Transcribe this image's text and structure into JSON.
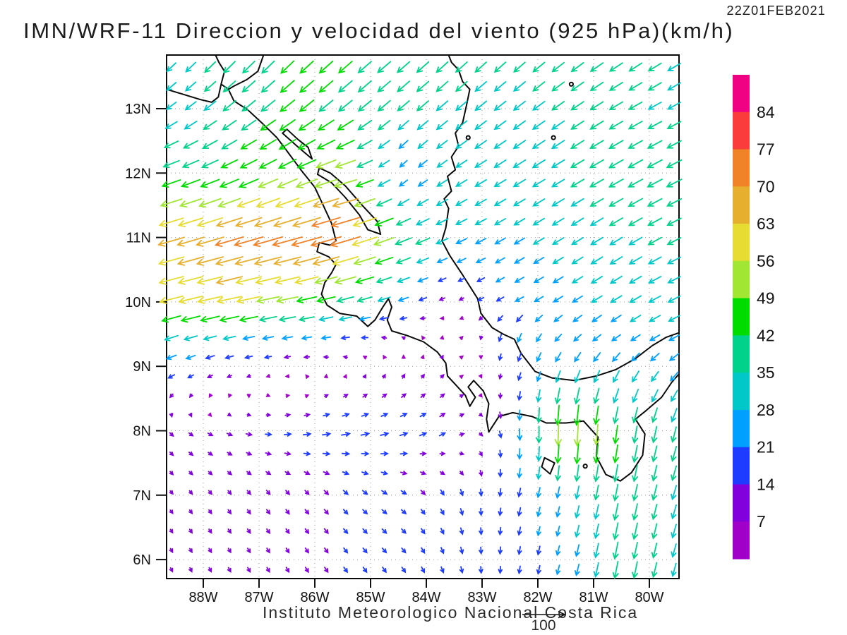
{
  "header": {
    "title": "IMN/WRF-11 Direccion y velocidad del viento (925 hPa)(km/h)",
    "timestamp": "22Z01FEB2021"
  },
  "footer": {
    "credit": "Instituto Meteorologico Nacional Costa Rica",
    "reference_arrow_label": "100"
  },
  "axes": {
    "lat_labels": [
      "13N",
      "12N",
      "11N",
      "10N",
      "9N",
      "8N",
      "7N",
      "6N"
    ],
    "lon_labels": [
      "88W",
      "87W",
      "86W",
      "85W",
      "84W",
      "83W",
      "82W",
      "81W",
      "80W"
    ]
  },
  "colorbar": {
    "labels_top_to_bottom": [
      "84",
      "77",
      "70",
      "63",
      "56",
      "49",
      "42",
      "35",
      "28",
      "21",
      "14",
      "7"
    ],
    "thresholds_kmh": [
      7,
      14,
      21,
      28,
      35,
      42,
      49,
      56,
      63,
      70,
      77,
      84
    ],
    "colors_bottom_to_top": [
      "#A000C8",
      "#8200DC",
      "#1E3CFF",
      "#00A0FF",
      "#00C8C8",
      "#00D28C",
      "#00DC00",
      "#A0E632",
      "#E6DC32",
      "#E6AF2D",
      "#F08228",
      "#FA3C3C",
      "#F00082"
    ]
  },
  "chart_data": {
    "type": "quiver_vector_field_on_map",
    "title": "IMN/WRF-11 Direccion y velocidad del viento (925 hPa)(km/h)",
    "valid_time": "22Z01FEB2021",
    "units": "km/h",
    "level": "925 hPa",
    "reference_vector_kmh": 100,
    "domain": {
      "lon_min": -88.66,
      "lon_max": -79.47,
      "lat_min": 5.7,
      "lat_max": 13.83
    },
    "grid_on": true,
    "control_grid": {
      "lons": [
        -88.7,
        -87.5,
        -86.5,
        -85.5,
        -84.5,
        -83.5,
        -82.5,
        -81.5,
        -80.5,
        -79.4
      ],
      "lats": [
        13.8,
        13.0,
        12.0,
        11.0,
        10.0,
        9.4,
        8.8,
        8.0,
        7.0,
        5.7
      ],
      "u_kmh": [
        [
          -20,
          -27,
          -30,
          -32,
          -30,
          -27,
          -26,
          -28,
          -30,
          -30
        ],
        [
          -22,
          -30,
          -34,
          -32,
          -28,
          -26,
          -27,
          -29,
          -31,
          -30
        ],
        [
          -40,
          -40,
          -42,
          -52,
          -14,
          -25,
          -28,
          -30,
          -34,
          -36
        ],
        [
          -62,
          -68,
          -72,
          -75,
          -40,
          -26,
          -24,
          -26,
          -30,
          -32
        ],
        [
          -55,
          -58,
          -50,
          -38,
          -24,
          -8,
          -18,
          -22,
          -26,
          -28
        ],
        [
          -30,
          -26,
          -22,
          -18,
          -6,
          4,
          -6,
          -16,
          -20,
          -24
        ],
        [
          -14,
          -8,
          -2,
          4,
          6,
          7,
          -4,
          -10,
          -14,
          -18
        ],
        [
          8,
          12,
          16,
          20,
          18,
          12,
          2,
          -2,
          -6,
          -10
        ],
        [
          6,
          7,
          8,
          10,
          12,
          6,
          -4,
          -6,
          -8,
          -10
        ],
        [
          4,
          5,
          6,
          8,
          8,
          4,
          -2,
          -6,
          -8,
          -8
        ]
      ],
      "v_kmh": [
        [
          -20,
          -28,
          -30,
          -28,
          -26,
          -25,
          -24,
          -22,
          -20,
          -18
        ],
        [
          -16,
          -24,
          -27,
          -26,
          -24,
          -22,
          -21,
          -20,
          -18,
          -16
        ],
        [
          -14,
          -18,
          -20,
          -15,
          -14,
          -16,
          -17,
          -18,
          -19,
          -18
        ],
        [
          -18,
          -20,
          -20,
          -22,
          -16,
          -12,
          -14,
          -16,
          -18,
          -16
        ],
        [
          -14,
          -12,
          -10,
          -10,
          -8,
          -4,
          -10,
          -14,
          -16,
          -14
        ],
        [
          -10,
          -6,
          -4,
          -2,
          4,
          6,
          -22,
          -16,
          -14,
          -12
        ],
        [
          -8,
          -4,
          0,
          6,
          9,
          7,
          -14,
          -30,
          -28,
          -20
        ],
        [
          -8,
          -4,
          2,
          4,
          6,
          8,
          -20,
          -60,
          -42,
          -35
        ],
        [
          -7,
          -9,
          -10,
          -10,
          -8,
          -14,
          -18,
          -26,
          -40,
          -32
        ],
        [
          -9,
          -10,
          -11,
          -12,
          -12,
          -14,
          -16,
          -22,
          -42,
          -28
        ]
      ]
    },
    "map_outline": {
      "pacific_coast": [
        [
          -88.66,
          13.3
        ],
        [
          -88.35,
          13.22
        ],
        [
          -88.05,
          13.14
        ],
        [
          -87.85,
          13.1
        ],
        [
          -87.73,
          13.18
        ],
        [
          -87.68,
          13.38
        ],
        [
          -87.55,
          13.3
        ],
        [
          -87.45,
          13.12
        ],
        [
          -87.2,
          12.98
        ],
        [
          -86.95,
          12.78
        ],
        [
          -86.68,
          12.55
        ],
        [
          -86.48,
          12.32
        ],
        [
          -86.25,
          12.05
        ],
        [
          -86.0,
          11.78
        ],
        [
          -85.85,
          11.5
        ],
        [
          -85.7,
          11.22
        ],
        [
          -85.62,
          10.95
        ],
        [
          -85.72,
          10.88
        ],
        [
          -85.92,
          10.92
        ],
        [
          -85.96,
          10.78
        ],
        [
          -85.75,
          10.7
        ],
        [
          -85.62,
          10.58
        ],
        [
          -85.7,
          10.45
        ],
        [
          -85.82,
          10.3
        ],
        [
          -85.88,
          10.12
        ],
        [
          -85.78,
          9.95
        ],
        [
          -85.55,
          9.82
        ],
        [
          -85.25,
          9.78
        ],
        [
          -85.05,
          9.62
        ],
        [
          -84.92,
          9.72
        ],
        [
          -84.78,
          9.92
        ],
        [
          -84.68,
          10.05
        ],
        [
          -84.62,
          9.92
        ],
        [
          -84.7,
          9.72
        ],
        [
          -84.62,
          9.55
        ],
        [
          -84.35,
          9.48
        ],
        [
          -84.05,
          9.38
        ],
        [
          -83.8,
          9.22
        ],
        [
          -83.65,
          9.05
        ],
        [
          -83.62,
          8.85
        ],
        [
          -83.48,
          8.72
        ],
        [
          -83.3,
          8.55
        ],
        [
          -83.22,
          8.38
        ],
        [
          -83.12,
          8.52
        ],
        [
          -83.25,
          8.68
        ],
        [
          -83.15,
          8.78
        ],
        [
          -82.98,
          8.62
        ],
        [
          -82.88,
          8.42
        ],
        [
          -82.92,
          8.18
        ],
        [
          -82.88,
          7.98
        ],
        [
          -82.7,
          8.22
        ],
        [
          -82.45,
          8.28
        ],
        [
          -82.1,
          8.22
        ],
        [
          -81.85,
          8.12
        ],
        [
          -81.5,
          8.12
        ],
        [
          -81.18,
          8.15
        ],
        [
          -80.92,
          7.9
        ],
        [
          -80.95,
          7.6
        ],
        [
          -80.78,
          7.32
        ],
        [
          -80.52,
          7.22
        ],
        [
          -80.32,
          7.35
        ],
        [
          -80.12,
          7.62
        ],
        [
          -80.08,
          7.95
        ],
        [
          -80.25,
          8.18
        ],
        [
          -80.05,
          8.32
        ],
        [
          -79.78,
          8.52
        ],
        [
          -79.6,
          8.75
        ],
        [
          -79.47,
          8.88
        ]
      ],
      "caribbean_coast": [
        [
          -79.47,
          9.52
        ],
        [
          -79.7,
          9.45
        ],
        [
          -79.95,
          9.32
        ],
        [
          -80.25,
          9.12
        ],
        [
          -80.6,
          8.95
        ],
        [
          -80.95,
          8.85
        ],
        [
          -81.35,
          8.78
        ],
        [
          -81.75,
          8.82
        ],
        [
          -82.05,
          8.92
        ],
        [
          -82.3,
          9.2
        ],
        [
          -82.42,
          9.42
        ],
        [
          -82.62,
          9.5
        ],
        [
          -82.82,
          9.6
        ],
        [
          -83.02,
          9.82
        ],
        [
          -83.08,
          10.05
        ],
        [
          -83.35,
          10.42
        ],
        [
          -83.58,
          10.72
        ],
        [
          -83.72,
          10.95
        ],
        [
          -83.65,
          11.15
        ],
        [
          -83.6,
          11.45
        ],
        [
          -83.68,
          11.6
        ],
        [
          -83.55,
          11.72
        ],
        [
          -83.62,
          11.95
        ],
        [
          -83.48,
          12.05
        ],
        [
          -83.55,
          12.25
        ],
        [
          -83.42,
          12.42
        ],
        [
          -83.48,
          12.62
        ],
        [
          -83.35,
          12.78
        ],
        [
          -83.28,
          13.05
        ],
        [
          -83.22,
          13.3
        ],
        [
          -83.35,
          13.42
        ],
        [
          -83.42,
          13.6
        ],
        [
          -83.55,
          13.72
        ],
        [
          -83.6,
          13.83
        ]
      ],
      "fonseca_inlet": [
        [
          -87.68,
          13.38
        ],
        [
          -87.62,
          13.58
        ],
        [
          -87.72,
          13.72
        ],
        [
          -87.78,
          13.83
        ]
      ],
      "honduras_line": [
        [
          -86.92,
          13.83
        ],
        [
          -87.02,
          13.58
        ],
        [
          -87.22,
          13.45
        ],
        [
          -87.45,
          13.35
        ],
        [
          -87.55,
          13.3
        ]
      ],
      "lake_managua": [
        [
          -86.58,
          12.62
        ],
        [
          -86.32,
          12.42
        ],
        [
          -86.05,
          12.22
        ],
        [
          -86.12,
          12.4
        ],
        [
          -86.3,
          12.52
        ],
        [
          -86.5,
          12.68
        ]
      ],
      "lake_nicaragua": [
        [
          -85.95,
          11.98
        ],
        [
          -85.7,
          11.85
        ],
        [
          -85.45,
          11.62
        ],
        [
          -85.2,
          11.35
        ],
        [
          -85.05,
          11.12
        ],
        [
          -84.82,
          11.05
        ],
        [
          -84.88,
          11.25
        ],
        [
          -85.15,
          11.5
        ],
        [
          -85.45,
          11.8
        ],
        [
          -85.72,
          12.0
        ],
        [
          -85.92,
          12.08
        ]
      ],
      "coiba_island": [
        [
          -81.88,
          7.58
        ],
        [
          -81.7,
          7.5
        ],
        [
          -81.78,
          7.33
        ],
        [
          -81.93,
          7.44
        ]
      ],
      "small_islands": [
        [
          -81.4,
          13.38
        ],
        [
          -81.72,
          12.55
        ],
        [
          -83.25,
          12.55
        ],
        [
          -81.15,
          7.45
        ]
      ]
    }
  }
}
